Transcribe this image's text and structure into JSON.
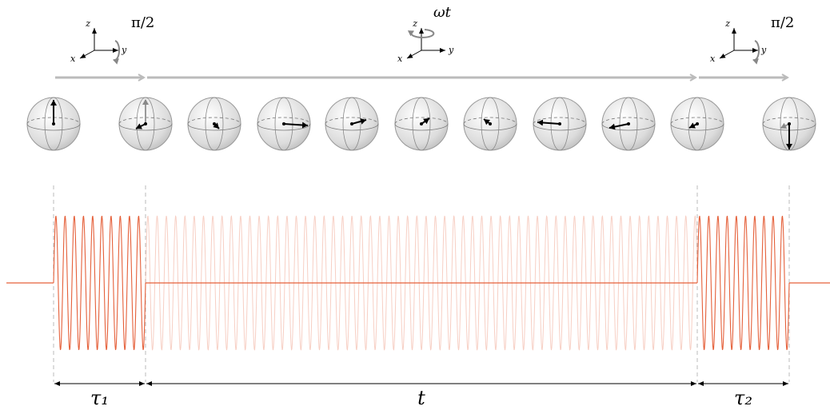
{
  "stages": [
    {
      "rotation": "π/2",
      "axes": {
        "z": "z",
        "y": "y",
        "x": "x"
      }
    },
    {
      "rotation": "ωt",
      "axes": {
        "z": "z",
        "y": "y",
        "x": "x"
      }
    },
    {
      "rotation": "π/2",
      "axes": {
        "z": "z",
        "y": "y",
        "x": "x"
      }
    }
  ],
  "durations": [
    "τ₁",
    "t",
    "τ₂"
  ]
}
